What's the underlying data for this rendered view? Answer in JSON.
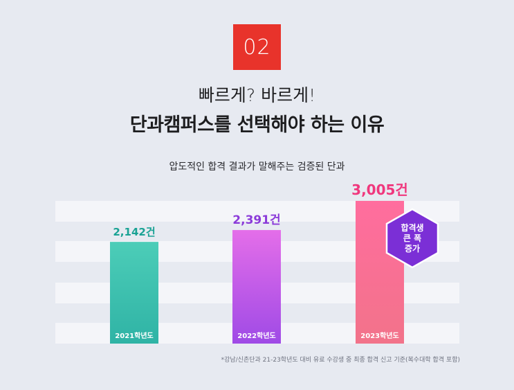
{
  "header": {
    "number": "02",
    "line1": "빠르게? 바르게!",
    "line2": "단과캠퍼스를 선택해야 하는 이유",
    "subtitle": "압도적인 합격 결과가 말해주는 검증된 단과"
  },
  "badge": {
    "lines": [
      "합격생",
      "큰 폭",
      "증가"
    ]
  },
  "footnote": "*강남/신촌단과 21-23학년도 대비 유료 수강생 중 최종 합격 신고 기준(복수대학 합격 포함)",
  "colors": {
    "accent_red": "#e8332b",
    "bar_2021": [
      "#4ccdb8",
      "#2fb3a5"
    ],
    "bar_2022": [
      "#e46ee9",
      "#9f4ae6"
    ],
    "bar_2023": [
      "#ff6d9e",
      "#f2738a"
    ],
    "label_2021": "#1aa294",
    "label_2022": "#8b3bd9",
    "label_2023": "#f0377d",
    "badge_purple": "#7b2fd6"
  },
  "chart_data": {
    "type": "bar",
    "categories": [
      "2021학년도",
      "2022학년도",
      "2023학년도"
    ],
    "values": [
      2142,
      2391,
      3005
    ],
    "value_labels": [
      "2,142건",
      "2,391건",
      "3,005건"
    ],
    "ylim": [
      0,
      3005
    ],
    "grid": true
  }
}
